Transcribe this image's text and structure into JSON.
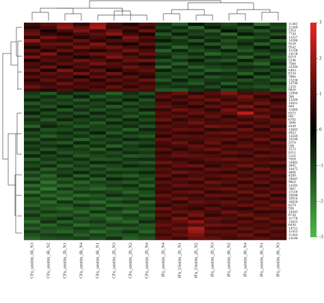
{
  "chart_data": {
    "type": "heatmap",
    "columns": [
      "CFu_unstim_6h_N3",
      "CFu_unstim_6h_N2",
      "CFu_unstim_2h_N1",
      "CFu_unstim_6h_N4",
      "CFu_unstim_6h_N1",
      "CFu_unstim_2h_N3",
      "CFu_unstim_2h_N2",
      "CFu_unstim_2h_N4",
      "JFu_unstim_2h_N4",
      "JFu_Unstim_2h_N1",
      "JFu_Unstim_2h_N2",
      "JFu_unstim_2h_N3",
      "JFu_unstim_6h_N2",
      "JFu_unstim_6h_N4",
      "JFu_unstim_6h_N1",
      "JFu_unstim_6h_N3"
    ],
    "rows": [
      "11402",
      "11269",
      "5354",
      "7739",
      "12357",
      "14586",
      "9539",
      "9542",
      "11238",
      "14158",
      "8219",
      "5246",
      "7566",
      "12294",
      "6463",
      "8134",
      "7806",
      "13236",
      "14790",
      "5150",
      "9826",
      "12960",
      "306",
      "13206",
      "10921",
      "404",
      "11869",
      "6572",
      "601",
      "6792",
      "3096",
      "4449",
      "13603",
      "4922",
      "13569",
      "10240",
      "2574",
      "599",
      "1572",
      "6551",
      "5119",
      "7628",
      "10482",
      "2895",
      "10475",
      "4896",
      "4289",
      "10047",
      "9810",
      "14283",
      "7867",
      "11528",
      "10948",
      "10914",
      "10650",
      "8579",
      "936",
      "14443",
      "8744",
      "11778",
      "13623",
      "8430",
      "14711",
      "12453",
      "11444",
      "14186"
    ],
    "values": [
      [
        0.8,
        1.2,
        1.5,
        0.6,
        1.9,
        0.9,
        0.4,
        1.1,
        -0.8,
        -1.5,
        -0.3,
        -0.9,
        -1.2,
        -0.6,
        -1.8,
        -1.0
      ],
      [
        0.5,
        0.9,
        1.8,
        1.2,
        2.1,
        0.7,
        1.0,
        0.6,
        -1.1,
        -0.7,
        -1.6,
        -0.4,
        -0.9,
        -1.3,
        -0.5,
        -1.2
      ],
      [
        1.1,
        0.3,
        0.9,
        1.6,
        0.8,
        1.3,
        0.5,
        1.4,
        -0.6,
        -1.2,
        -0.9,
        -1.5,
        -0.3,
        -1.0,
        -1.4,
        -0.7
      ],
      [
        1.4,
        0.7,
        0.4,
        0.9,
        1.2,
        1.7,
        0.8,
        0.3,
        -1.4,
        -0.5,
        -1.1,
        -0.8,
        -1.6,
        -0.4,
        -0.9,
        -1.3
      ],
      [
        0.6,
        1.5,
        1.1,
        0.5,
        0.9,
        0.4,
        1.6,
        1.0,
        -0.9,
        -1.3,
        -0.6,
        -1.1,
        -0.8,
        -1.5,
        -1.2,
        -0.5
      ],
      [
        1.9,
        0.8,
        0.6,
        1.3,
        0.5,
        1.0,
        1.2,
        0.7,
        -0.4,
        -0.8,
        -1.4,
        -0.6,
        -1.3,
        -0.9,
        -0.7,
        -1.6
      ],
      [
        0.9,
        1.3,
        1.4,
        0.8,
        1.6,
        0.6,
        0.3,
        1.2,
        -1.2,
        -0.9,
        -0.5,
        -1.4,
        -1.0,
        -0.6,
        -1.5,
        -0.8
      ],
      [
        0.4,
        1.0,
        0.7,
        1.5,
        1.1,
        1.4,
        0.9,
        0.5,
        -0.7,
        -1.6,
        -1.0,
        -0.5,
        -1.5,
        -1.1,
        -0.4,
        -1.2
      ],
      [
        1.2,
        0.5,
        1.3,
        0.7,
        0.4,
        0.8,
        1.5,
        0.9,
        -1.5,
        -0.6,
        -1.3,
        -1.0,
        -0.5,
        -1.4,
        -0.9,
        -0.6
      ],
      [
        0.7,
        1.6,
        0.5,
        1.0,
        1.4,
        1.2,
        0.6,
        1.3,
        -0.9,
        -1.1,
        -0.7,
        -1.6,
        -1.2,
        -0.8,
        -1.3,
        -1.0
      ],
      [
        1.5,
        0.9,
        1.0,
        0.4,
        0.7,
        1.6,
        1.1,
        0.6,
        -0.6,
        -1.4,
        -1.2,
        -0.7,
        -0.9,
        -1.6,
        -0.6,
        -1.4
      ],
      [
        0.3,
        1.1,
        0.8,
        1.4,
        1.0,
        0.5,
        1.3,
        1.5,
        -1.3,
        -0.8,
        -0.4,
        -1.2,
        -1.4,
        -0.5,
        -1.1,
        -0.9
      ],
      [
        1.0,
        0.6,
        1.2,
        0.9,
        1.5,
        1.1,
        0.7,
        0.4,
        -0.8,
        -1.5,
        -0.9,
        -0.8,
        -0.6,
        -1.2,
        -1.6,
        -0.5
      ],
      [
        0.8,
        1.4,
        0.4,
        1.1,
        0.6,
        0.9,
        1.4,
        1.0,
        -1.6,
        -0.7,
        -1.5,
        -1.1,
        -1.0,
        -0.7,
        -0.8,
        -1.3
      ],
      [
        1.3,
        0.4,
        1.6,
        0.6,
        1.3,
        0.3,
        0.9,
        1.2,
        -0.5,
        -1.2,
        -0.8,
        -1.5,
        -1.3,
        -1.0,
        -1.2,
        -0.7
      ],
      [
        0.6,
        1.2,
        0.9,
        1.5,
        0.8,
        1.4,
        0.5,
        0.8,
        -1.1,
        -0.9,
        -1.3,
        -0.6,
        -0.7,
        -1.5,
        -0.5,
        -1.1
      ],
      [
        1.1,
        0.8,
        1.1,
        0.3,
        1.2,
        0.7,
        1.2,
        0.5,
        -0.9,
        -1.3,
        -0.6,
        -1.3,
        -1.1,
        -0.4,
        -1.4,
        -0.8
      ],
      [
        0.5,
        1.3,
        0.6,
        1.2,
        0.5,
        1.2,
        0.8,
        1.4,
        -1.4,
        -0.5,
        -1.1,
        -0.9,
        -0.8,
        -1.3,
        -0.9,
        -1.5
      ],
      [
        0.9,
        0.7,
        1.4,
        0.8,
        1.0,
        0.6,
        1.0,
        0.7,
        -0.7,
        -1.1,
        -1.4,
        -0.7,
        -1.5,
        -0.8,
        -1.0,
        -0.6
      ],
      [
        1.4,
        1.0,
        0.8,
        1.0,
        0.7,
        1.3,
        0.6,
        1.1,
        -1.0,
        -0.8,
        -0.7,
        -1.2,
        -0.6,
        -1.1,
        -1.3,
        -1.2
      ],
      [
        0.7,
        0.5,
        1.0,
        0.6,
        1.1,
        0.8,
        1.1,
        0.9,
        -1.3,
        -1.4,
        -0.9,
        -0.6,
        -1.2,
        -0.7,
        -0.8,
        -1.4
      ],
      [
        -0.9,
        -1.4,
        -0.6,
        -1.1,
        -0.8,
        -1.5,
        -0.7,
        -1.2,
        0.8,
        1.3,
        0.6,
        1.1,
        1.6,
        0.9,
        1.2,
        0.7
      ],
      [
        -1.2,
        -0.7,
        -1.3,
        -0.5,
        -1.4,
        -0.9,
        -1.1,
        -0.6,
        1.2,
        0.7,
        1.4,
        0.8,
        1.0,
        1.5,
        0.6,
        1.1
      ],
      [
        -0.6,
        -1.1,
        -0.9,
        -1.4,
        -0.7,
        -1.2,
        -0.5,
        -1.3,
        0.6,
        1.1,
        0.9,
        1.4,
        0.7,
        1.2,
        1.0,
        0.5
      ],
      [
        -1.4,
        -0.9,
        -1.2,
        -0.8,
        -1.1,
        -0.6,
        -1.3,
        -0.9,
        1.0,
        0.6,
        1.2,
        0.7,
        1.3,
        0.8,
        1.4,
        0.9
      ],
      [
        -0.8,
        -1.3,
        -0.5,
        -1.2,
        -0.9,
        -1.4,
        -0.8,
        -1.1,
        1.3,
        0.9,
        0.5,
        1.2,
        0.8,
        1.6,
        0.7,
        1.2
      ],
      [
        -1.1,
        -0.6,
        -1.4,
        -0.7,
        -1.3,
        -0.8,
        -1.2,
        -0.5,
        0.7,
        1.4,
        1.1,
        0.6,
        1.5,
        0.9,
        1.3,
        0.8
      ],
      [
        -0.5,
        -1.2,
        -0.8,
        -1.3,
        -0.6,
        -1.1,
        -0.9,
        -1.4,
        1.1,
        0.8,
        1.3,
        1.0,
        1.2,
        2.4,
        0.9,
        1.0
      ],
      [
        -1.3,
        -0.8,
        -1.1,
        -0.6,
        -1.2,
        -0.7,
        -1.4,
        -0.8,
        0.9,
        1.2,
        0.7,
        1.3,
        0.6,
        1.1,
        1.5,
        0.6
      ],
      [
        -0.7,
        -1.4,
        -0.6,
        -1.1,
        -0.8,
        -1.3,
        -0.6,
        -1.2,
        1.4,
        0.6,
        1.0,
        0.8,
        1.1,
        0.7,
        1.0,
        1.3
      ],
      [
        -1.0,
        -0.9,
        -1.3,
        -0.9,
        -1.4,
        -0.6,
        -1.0,
        -0.7,
        0.6,
        1.0,
        1.4,
        0.9,
        0.9,
        1.3,
        0.8,
        1.1
      ],
      [
        -1.5,
        -0.6,
        -0.9,
        -1.4,
        -1.0,
        -1.2,
        -0.7,
        -1.3,
        1.2,
        0.9,
        0.8,
        1.5,
        1.3,
        0.6,
        1.2,
        0.7
      ],
      [
        -0.6,
        -1.3,
        -1.2,
        -0.7,
        -1.1,
        -0.9,
        -1.5,
        -0.6,
        0.8,
        1.3,
        1.2,
        0.6,
        0.7,
        1.4,
        0.6,
        1.4
      ],
      [
        -1.2,
        -1.0,
        -0.7,
        -1.2,
        -0.5,
        -1.4,
        -0.8,
        -1.0,
        1.1,
        0.7,
        0.6,
        1.2,
        1.4,
        0.9,
        1.1,
        0.9
      ],
      [
        -0.9,
        -1.5,
        -1.1,
        -0.8,
        -1.3,
        -0.7,
        -1.2,
        -1.4,
        0.5,
        1.2,
        1.1,
        0.9,
        0.8,
        1.2,
        0.9,
        1.2
      ],
      [
        -1.4,
        -0.7,
        -0.8,
        -1.5,
        -0.9,
        -1.1,
        -0.6,
        -0.8,
        1.3,
        0.8,
        0.9,
        1.1,
        1.2,
        0.7,
        1.4,
        0.6
      ],
      [
        -0.7,
        -1.2,
        -1.4,
        -0.6,
        -1.2,
        -0.8,
        -1.3,
        -1.1,
        0.9,
        1.4,
        0.7,
        1.3,
        0.6,
        1.0,
        0.7,
        1.3
      ],
      [
        -1.1,
        -0.8,
        -0.6,
        -1.3,
        -0.7,
        -1.5,
        -0.9,
        -0.6,
        0.7,
        0.9,
        1.3,
        0.8,
        1.1,
        1.3,
        1.0,
        0.8
      ],
      [
        -0.8,
        -1.4,
        -1.0,
        -0.9,
        -1.5,
        -0.6,
        -1.1,
        -1.2,
        1.2,
        0.6,
        1.0,
        1.4,
        0.9,
        0.8,
        1.2,
        1.1
      ],
      [
        -1.3,
        -0.6,
        -1.3,
        -1.1,
        -0.8,
        -1.2,
        -0.7,
        -0.9,
        0.6,
        1.1,
        0.8,
        0.7,
        1.3,
        1.1,
        0.6,
        0.9
      ],
      [
        -0.6,
        -1.1,
        -0.7,
        -1.4,
        -1.1,
        -0.9,
        -1.4,
        -1.3,
        1.0,
        1.3,
        1.2,
        1.0,
        0.7,
        0.6,
        1.3,
        1.2
      ],
      [
        -1.5,
        -0.9,
        -1.2,
        -0.7,
        -1.3,
        -1.3,
        -0.8,
        -0.7,
        0.8,
        0.7,
        0.9,
        1.2,
        1.4,
        1.2,
        0.9,
        0.7
      ],
      [
        -0.9,
        -1.3,
        -0.8,
        -1.2,
        -0.6,
        -0.7,
        -1.2,
        -1.4,
        1.4,
        1.0,
        0.6,
        0.9,
        0.8,
        0.9,
        1.1,
        1.4
      ],
      [
        -1.2,
        -0.7,
        -1.5,
        -0.9,
        -1.4,
        -1.1,
        -0.6,
        -0.8,
        0.7,
        1.2,
        1.4,
        0.6,
        1.0,
        1.4,
        0.8,
        0.6
      ],
      [
        -0.7,
        -1.5,
        -0.9,
        -1.3,
        -0.9,
        -1.4,
        -1.3,
        -1.2,
        1.1,
        0.8,
        0.7,
        1.3,
        1.2,
        0.7,
        1.4,
        1.0
      ],
      [
        -1.4,
        -1.0,
        -1.1,
        -0.6,
        -1.2,
        -0.8,
        -0.9,
        -0.6,
        0.9,
        1.4,
        1.1,
        0.8,
        0.6,
        1.1,
        0.7,
        1.3
      ],
      [
        -1.0,
        -1.6,
        -0.7,
        -1.5,
        -0.7,
        -1.3,
        -1.5,
        -1.1,
        1.3,
        0.6,
        0.9,
        1.1,
        1.3,
        0.8,
        1.2,
        0.8
      ],
      [
        -1.6,
        -1.2,
        -1.4,
        -0.8,
        -1.5,
        -0.6,
        -0.8,
        -1.3,
        0.6,
        1.1,
        1.3,
        0.7,
        0.9,
        1.3,
        0.9,
        1.2
      ],
      [
        -0.8,
        -1.8,
        -1.0,
        -1.6,
        -1.0,
        -1.2,
        -1.4,
        -0.9,
        1.2,
        0.9,
        0.6,
        1.4,
        1.1,
        0.6,
        1.3,
        0.7
      ],
      [
        -1.7,
        -1.3,
        -1.6,
        -1.1,
        -1.3,
        -0.9,
        -0.7,
        -1.5,
        0.8,
        1.3,
        1.2,
        0.9,
        0.7,
        1.2,
        0.6,
        1.1
      ],
      [
        -1.1,
        -1.9,
        -0.9,
        -1.4,
        -1.6,
        -1.4,
        -1.2,
        -0.8,
        1.0,
        0.7,
        0.8,
        1.2,
        1.4,
        0.9,
        1.1,
        0.9
      ],
      [
        -1.8,
        -1.1,
        -1.5,
        -0.9,
        -0.9,
        -1.1,
        -1.6,
        -1.2,
        0.7,
        1.2,
        1.4,
        0.6,
        0.8,
        1.4,
        0.8,
        1.3
      ],
      [
        -0.9,
        -1.6,
        -1.2,
        -1.7,
        -1.4,
        -0.7,
        -0.9,
        -1.4,
        1.3,
        0.8,
        0.7,
        1.3,
        1.2,
        0.7,
        1.4,
        0.6
      ],
      [
        -1.5,
        -1.0,
        -1.7,
        -1.0,
        -1.1,
        -1.5,
        -1.3,
        -0.7,
        0.9,
        1.4,
        1.0,
        0.8,
        0.6,
        1.1,
        0.7,
        1.2
      ],
      [
        -1.2,
        -1.7,
        -0.8,
        -1.5,
        -1.7,
        -1.0,
        -0.8,
        -1.6,
        1.1,
        0.6,
        1.3,
        1.1,
        1.3,
        0.8,
        1.2,
        0.8
      ],
      [
        -1.6,
        -1.2,
        -1.3,
        -0.8,
        -1.0,
        -1.6,
        -1.5,
        -1.0,
        0.6,
        1.1,
        0.9,
        0.7,
        1.0,
        1.3,
        0.9,
        1.4
      ],
      [
        -1.0,
        -1.4,
        -1.6,
        -1.3,
        -1.5,
        -0.8,
        -1.1,
        -1.3,
        1.4,
        0.9,
        0.6,
        1.2,
        0.7,
        0.6,
        1.3,
        1.1
      ],
      [
        -1.4,
        -0.9,
        -1.1,
        -1.6,
        -0.8,
        -1.3,
        -1.7,
        -0.9,
        0.8,
        1.3,
        1.2,
        0.9,
        1.4,
        1.0,
        0.6,
        0.7
      ],
      [
        -0.8,
        -1.5,
        -1.4,
        -1.0,
        -1.6,
        -1.1,
        -0.9,
        -1.5,
        1.2,
        0.7,
        1.5,
        0.6,
        0.9,
        1.4,
        1.0,
        1.2
      ],
      [
        -1.3,
        -1.1,
        -0.7,
        -1.4,
        -1.2,
        -1.7,
        -1.2,
        -1.1,
        0.7,
        1.6,
        0.8,
        1.3,
        1.1,
        0.7,
        1.4,
        0.9
      ],
      [
        -1.7,
        -0.8,
        -1.5,
        -1.1,
        -0.9,
        -1.4,
        -1.6,
        -0.7,
        1.0,
        1.2,
        1.8,
        1.0,
        0.8,
        1.2,
        0.8,
        1.3
      ],
      [
        -1.1,
        -1.6,
        -1.0,
        -1.7,
        -1.4,
        -0.9,
        -1.0,
        -1.4,
        1.3,
        0.9,
        1.1,
        1.4,
        1.3,
        0.9,
        1.1,
        0.7
      ],
      [
        -1.5,
        -1.2,
        -1.3,
        -0.9,
        -1.1,
        -1.5,
        -1.4,
        -1.2,
        0.9,
        1.4,
        2.2,
        0.8,
        0.7,
        1.3,
        0.9,
        1.2
      ],
      [
        -0.9,
        -1.4,
        -1.6,
        -1.2,
        -1.7,
        -1.2,
        -0.8,
        -1.6,
        1.1,
        1.0,
        1.9,
        1.2,
        1.2,
        0.8,
        1.3,
        0.8
      ],
      [
        -1.3,
        -1.0,
        -0.9,
        -1.5,
        -1.0,
        -1.4,
        -1.3,
        -1.0,
        0.8,
        1.3,
        1.5,
        0.9,
        1.0,
        1.4,
        0.7,
        1.1
      ],
      [
        -1.6,
        -1.3,
        -1.2,
        -1.0,
        -1.3,
        -0.8,
        -1.5,
        -1.3,
        1.2,
        0.8,
        1.3,
        1.3,
        0.9,
        1.0,
        1.2,
        0.9
      ]
    ],
    "colorbar": {
      "lim": [
        -3,
        3
      ],
      "ticks": [
        3,
        2,
        1,
        0,
        -1,
        -2,
        -3
      ]
    },
    "low_color": "#4cbb47",
    "mid_color": "#000000",
    "high_color": "#e8261f"
  }
}
